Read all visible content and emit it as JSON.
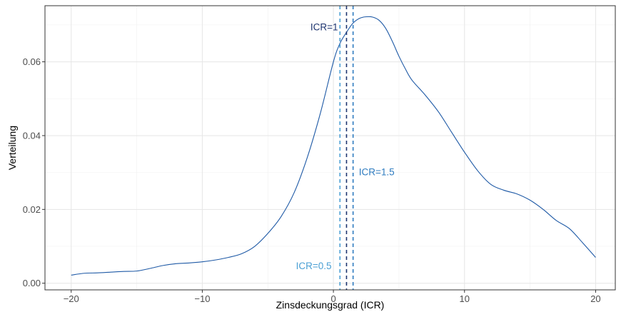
{
  "chart_data": {
    "type": "line",
    "title": "",
    "xlabel": "Zinsdeckungsgrad (ICR)",
    "ylabel": "Verteilung",
    "xlim": [
      -22,
      21.5
    ],
    "ylim": [
      -0.0018,
      0.0752
    ],
    "x_ticks": [
      -20,
      -10,
      0,
      10,
      20
    ],
    "x_tick_labels": [
      "−20",
      "−10",
      "0",
      "10",
      "20"
    ],
    "y_ticks": [
      0.0,
      0.02,
      0.04,
      0.06
    ],
    "y_tick_labels": [
      "0.00",
      "0.02",
      "0.04",
      "0.06"
    ],
    "grid": true,
    "line_color": "#1f5aa6",
    "series": [
      {
        "points": [
          [
            -20,
            0.0022
          ],
          [
            -19,
            0.0027
          ],
          [
            -18,
            0.0028
          ],
          [
            -17,
            0.003
          ],
          [
            -16,
            0.0032
          ],
          [
            -15,
            0.0033
          ],
          [
            -14,
            0.004
          ],
          [
            -13,
            0.0048
          ],
          [
            -12,
            0.0053
          ],
          [
            -11,
            0.0055
          ],
          [
            -10,
            0.0058
          ],
          [
            -9,
            0.0063
          ],
          [
            -8,
            0.007
          ],
          [
            -7,
            0.008
          ],
          [
            -6,
            0.01
          ],
          [
            -5,
            0.0135
          ],
          [
            -4,
            0.018
          ],
          [
            -3,
            0.0245
          ],
          [
            -2,
            0.034
          ],
          [
            -1,
            0.046
          ],
          [
            0,
            0.06
          ],
          [
            0.5,
            0.065
          ],
          [
            1,
            0.068
          ],
          [
            1.5,
            0.0705
          ],
          [
            2,
            0.0718
          ],
          [
            2.5,
            0.0722
          ],
          [
            3,
            0.0721
          ],
          [
            3.5,
            0.0712
          ],
          [
            4,
            0.069
          ],
          [
            4.5,
            0.0655
          ],
          [
            5,
            0.0615
          ],
          [
            5.5,
            0.058
          ],
          [
            6,
            0.055
          ],
          [
            7,
            0.051
          ],
          [
            8,
            0.0465
          ],
          [
            9,
            0.041
          ],
          [
            10,
            0.0355
          ],
          [
            11,
            0.0305
          ],
          [
            12,
            0.0268
          ],
          [
            13,
            0.0252
          ],
          [
            14,
            0.0242
          ],
          [
            15,
            0.0225
          ],
          [
            16,
            0.02
          ],
          [
            17,
            0.017
          ],
          [
            18,
            0.0148
          ],
          [
            19,
            0.011
          ],
          [
            20,
            0.007
          ]
        ]
      }
    ],
    "reference_lines": [
      {
        "x": 0.5,
        "label": "ICR=0.5",
        "color": "#4a9fd4",
        "label_x": -1.5,
        "label_y": 0.0048
      },
      {
        "x": 1.0,
        "label": "ICR=1",
        "color": "#1e3570",
        "label_x": -0.7,
        "label_y": 0.0695
      },
      {
        "x": 1.5,
        "label": "ICR=1.5",
        "color": "#2f7cc0",
        "label_x": 3.3,
        "label_y": 0.0302
      }
    ]
  }
}
